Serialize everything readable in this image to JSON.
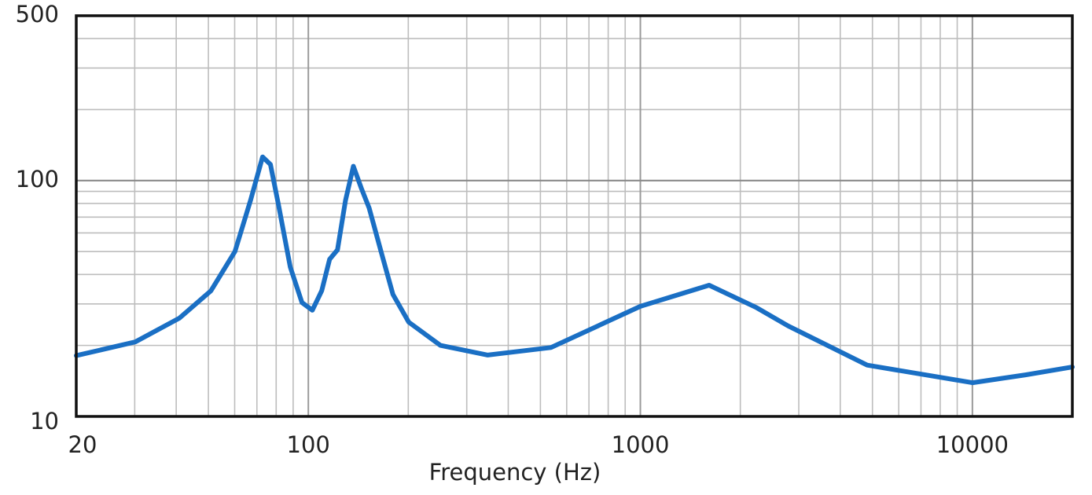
{
  "chart_data": {
    "type": "line",
    "xlabel": "Frequency (Hz)",
    "xscale": "log",
    "yscale": "log",
    "xlim": [
      20,
      20000
    ],
    "ylim": [
      10,
      500
    ],
    "xticks": [
      20,
      100,
      1000,
      10000
    ],
    "yticks": [
      10,
      100,
      500
    ],
    "xgrid": [
      30,
      40,
      50,
      60,
      70,
      80,
      90,
      200,
      300,
      400,
      500,
      600,
      700,
      800,
      900,
      2000,
      3000,
      4000,
      5000,
      6000,
      7000,
      8000,
      9000
    ],
    "ygrid": [
      20,
      30,
      40,
      50,
      60,
      70,
      80,
      90,
      200,
      300,
      400
    ],
    "grid": true,
    "x": [
      20,
      30.1,
      40.9,
      50.9,
      60.1,
      67,
      72.8,
      76.9,
      81.3,
      88.2,
      95.7,
      102.8,
      109.7,
      115.9,
      122.4,
      129.4,
      136.7,
      144.5,
      152.5,
      165.6,
      179.8,
      200.6,
      249.9,
      347,
      538,
      1000,
      1611,
      2239,
      2786,
      4819,
      10000,
      14450,
      20000
    ],
    "series": [
      {
        "color": "#1a6fc4",
        "values": [
          18.1,
          20.7,
          26.1,
          34.1,
          50,
          82.5,
          126,
          117,
          79,
          43,
          30.4,
          28.2,
          34.1,
          46.4,
          50.9,
          82.5,
          115,
          92.6,
          76.4,
          50,
          32.9,
          25.1,
          20,
          18.2,
          19.6,
          29.3,
          36,
          28.9,
          24.2,
          16.5,
          13.9,
          15,
          16.2
        ]
      }
    ]
  }
}
